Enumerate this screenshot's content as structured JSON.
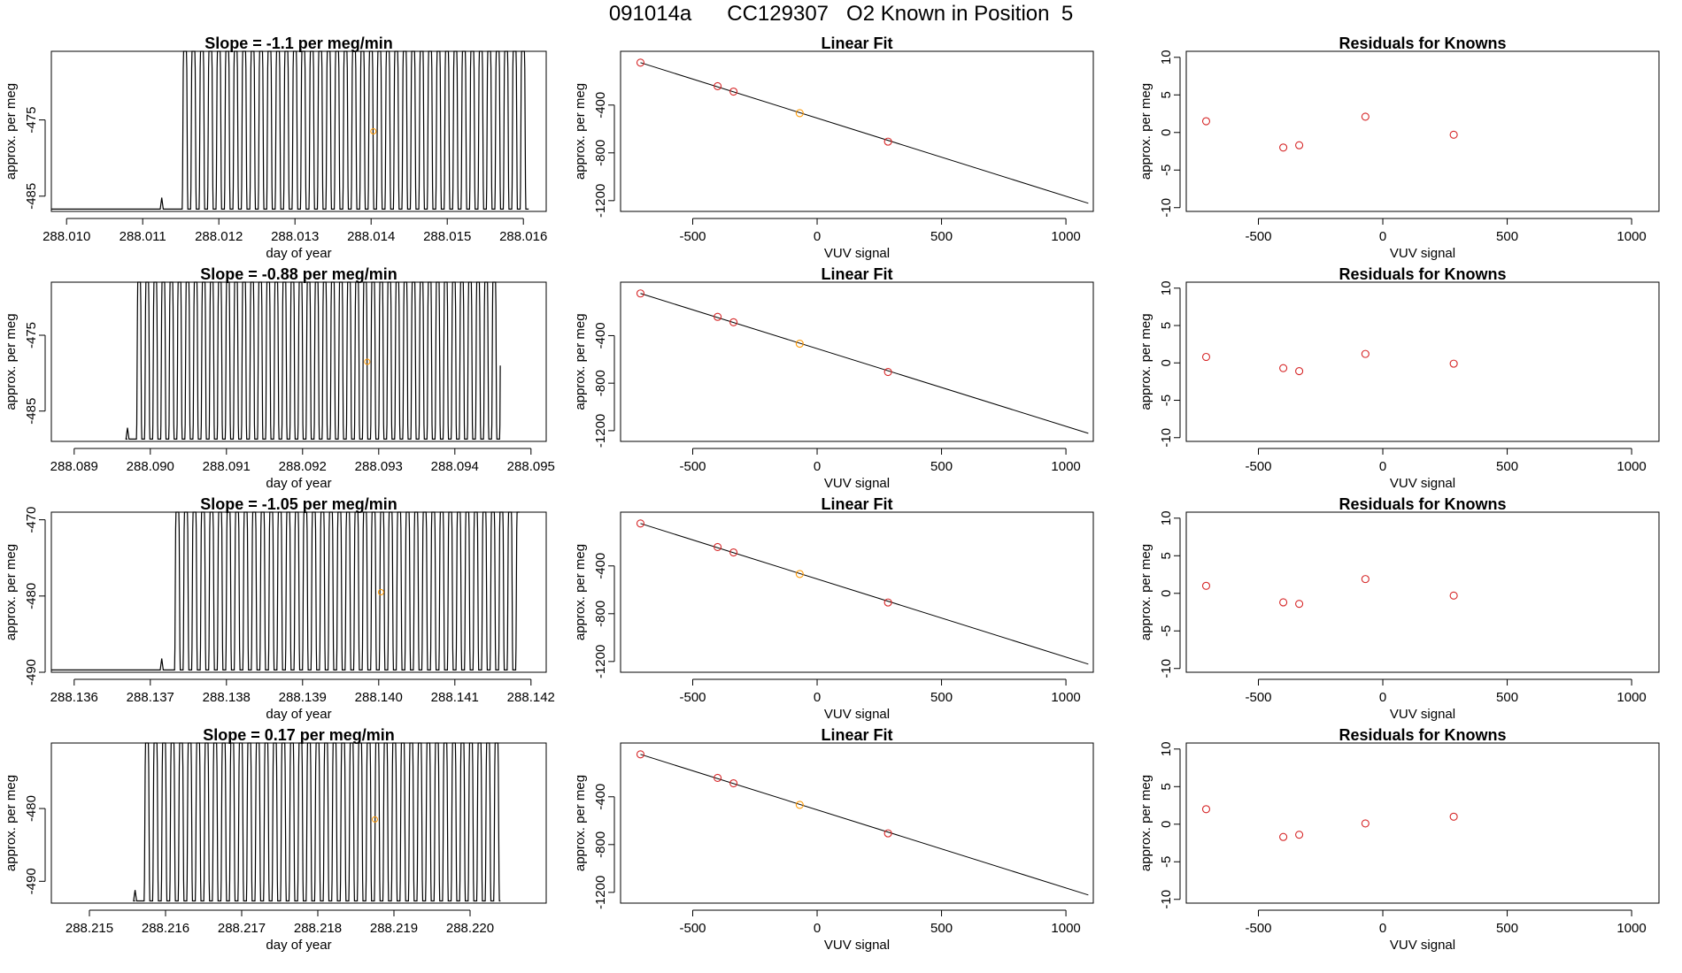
{
  "page_title": "091014a      CC129307   O2 Known in Position  5",
  "colors": {
    "line": "#000000",
    "known": "#d62728",
    "sample": "#ff9900",
    "axis": "#000000"
  },
  "chart_data": [
    {
      "type": "line",
      "title": "Slope =  -1.1  per meg/min",
      "xlabel": "day of year",
      "ylabel": "approx. per meg",
      "xlim": [
        288.0098,
        288.0163
      ],
      "ylim": [
        -487,
        -466
      ],
      "xticks": [
        288.01,
        288.011,
        288.012,
        288.013,
        288.014,
        288.015,
        288.016
      ],
      "xtick_labels": [
        "288.010",
        "288.011",
        "288.012",
        "288.013",
        "288.014",
        "288.015",
        "288.016"
      ],
      "yticks": [
        -475,
        -485
      ],
      "ytick_labels": [
        "-475",
        "-485"
      ],
      "series": [
        {
          "name": "trace",
          "x_start": 288.0098,
          "x_rise": 288.01125,
          "x_osc_start": 288.0115,
          "x_end": 288.01607,
          "period": 0.000111,
          "amplitude": 30,
          "center": -476
        }
      ],
      "marker": {
        "x": 288.01403,
        "y": -476.5
      }
    },
    {
      "type": "scatter",
      "title": "Linear Fit",
      "xlabel": "VUV signal",
      "ylabel": "approx. per meg",
      "xlim": [
        -790,
        1110
      ],
      "ylim": [
        -1290,
        50
      ],
      "xticks": [
        -500,
        0,
        500,
        1000
      ],
      "xtick_labels": [
        "-500",
        "0",
        "500",
        "1000"
      ],
      "yticks": [
        -400,
        -800,
        -1200
      ],
      "ytick_labels": [
        "-400",
        "-800",
        "-1200"
      ],
      "fit_line": {
        "x": [
          -710,
          1090
        ],
        "y": [
          -45,
          -1222
        ]
      },
      "points": [
        {
          "x": -710,
          "y": -45,
          "kind": "known"
        },
        {
          "x": -400,
          "y": -242,
          "kind": "known"
        },
        {
          "x": -336,
          "y": -287,
          "kind": "known"
        },
        {
          "x": -70,
          "y": -468,
          "kind": "sample"
        },
        {
          "x": 285,
          "y": -706,
          "kind": "known"
        }
      ]
    },
    {
      "type": "scatter",
      "title": "Residuals for Knowns",
      "xlabel": "VUV signal",
      "ylabel": "approx. per meg",
      "xlim": [
        -790,
        1110
      ],
      "ylim": [
        -10.5,
        10.8
      ],
      "xticks": [
        -500,
        0,
        500,
        1000
      ],
      "xtick_labels": [
        "-500",
        "0",
        "500",
        "1000"
      ],
      "yticks": [
        10,
        5,
        0,
        -5,
        -10
      ],
      "ytick_labels": [
        "10",
        "5",
        "0",
        "-5",
        "-10"
      ],
      "points": [
        {
          "x": -710,
          "y": 1.5
        },
        {
          "x": -400,
          "y": -2.0
        },
        {
          "x": -336,
          "y": -1.7
        },
        {
          "x": -70,
          "y": 2.1
        },
        {
          "x": 285,
          "y": -0.3
        }
      ]
    },
    {
      "type": "line",
      "title": "Slope =  -0.88  per meg/min",
      "xlabel": "day of year",
      "ylabel": "approx. per meg",
      "xlim": [
        288.0887,
        288.0952
      ],
      "ylim": [
        -489,
        -468
      ],
      "xticks": [
        288.089,
        288.09,
        288.091,
        288.092,
        288.093,
        288.094,
        288.095
      ],
      "xtick_labels": [
        "288.089",
        "288.090",
        "288.091",
        "288.092",
        "288.093",
        "288.094",
        "288.095"
      ],
      "yticks": [
        -475,
        -485
      ],
      "ytick_labels": [
        "-475",
        "-485"
      ],
      "series": [
        {
          "name": "trace",
          "x_start": 288.0897,
          "x_rise": 288.0897,
          "x_osc_start": 288.0898,
          "x_end": 288.0946,
          "period": 0.000106,
          "amplitude": 30,
          "center": -479
        }
      ],
      "marker": {
        "x": 288.09285,
        "y": -478.5
      }
    },
    {
      "type": "scatter",
      "title": "Linear Fit",
      "xlabel": "VUV signal",
      "ylabel": "approx. per meg",
      "xlim": [
        -790,
        1110
      ],
      "ylim": [
        -1290,
        50
      ],
      "xticks": [
        -500,
        0,
        500,
        1000
      ],
      "xtick_labels": [
        "-500",
        "0",
        "500",
        "1000"
      ],
      "yticks": [
        -400,
        -800,
        -1200
      ],
      "ytick_labels": [
        "-400",
        "-800",
        "-1200"
      ],
      "fit_line": {
        "x": [
          -710,
          1090
        ],
        "y": [
          -45,
          -1222
        ]
      },
      "points": [
        {
          "x": -710,
          "y": -45,
          "kind": "known"
        },
        {
          "x": -400,
          "y": -242,
          "kind": "known"
        },
        {
          "x": -336,
          "y": -287,
          "kind": "known"
        },
        {
          "x": -70,
          "y": -468,
          "kind": "sample"
        },
        {
          "x": 285,
          "y": -706,
          "kind": "known"
        }
      ]
    },
    {
      "type": "scatter",
      "title": "Residuals for Knowns",
      "xlabel": "VUV signal",
      "ylabel": "approx. per meg",
      "xlim": [
        -790,
        1110
      ],
      "ylim": [
        -10.5,
        10.8
      ],
      "xticks": [
        -500,
        0,
        500,
        1000
      ],
      "xtick_labels": [
        "-500",
        "0",
        "500",
        "1000"
      ],
      "yticks": [
        10,
        5,
        0,
        -5,
        -10
      ],
      "ytick_labels": [
        "10",
        "5",
        "0",
        "-5",
        "-10"
      ],
      "points": [
        {
          "x": -710,
          "y": 0.8
        },
        {
          "x": -400,
          "y": -0.7
        },
        {
          "x": -336,
          "y": -1.1
        },
        {
          "x": -70,
          "y": 1.2
        },
        {
          "x": 285,
          "y": -0.1
        }
      ]
    },
    {
      "type": "line",
      "title": "Slope =  -1.05  per meg/min",
      "xlabel": "day of year",
      "ylabel": "approx. per meg",
      "xlim": [
        288.1357,
        288.1422
      ],
      "ylim": [
        -490,
        -469
      ],
      "xticks": [
        288.136,
        288.137,
        288.138,
        288.139,
        288.14,
        288.141,
        288.142
      ],
      "xtick_labels": [
        "288.136",
        "288.137",
        "288.138",
        "288.139",
        "288.140",
        "288.141",
        "288.142"
      ],
      "yticks": [
        -470,
        -480,
        -490
      ],
      "ytick_labels": [
        "-470",
        "-480",
        "-490"
      ],
      "series": [
        {
          "name": "trace",
          "x_start": 288.1357,
          "x_rise": 288.13715,
          "x_osc_start": 288.1373,
          "x_end": 288.14185,
          "period": 0.000112,
          "amplitude": 30,
          "center": -479
        }
      ],
      "marker": {
        "x": 288.14003,
        "y": -479.5
      }
    },
    {
      "type": "scatter",
      "title": "Linear Fit",
      "xlabel": "VUV signal",
      "ylabel": "approx. per meg",
      "xlim": [
        -790,
        1110
      ],
      "ylim": [
        -1290,
        50
      ],
      "xticks": [
        -500,
        0,
        500,
        1000
      ],
      "xtick_labels": [
        "-500",
        "0",
        "500",
        "1000"
      ],
      "yticks": [
        -400,
        -800,
        -1200
      ],
      "ytick_labels": [
        "-400",
        "-800",
        "-1200"
      ],
      "fit_line": {
        "x": [
          -710,
          1090
        ],
        "y": [
          -45,
          -1222
        ]
      },
      "points": [
        {
          "x": -710,
          "y": -45,
          "kind": "known"
        },
        {
          "x": -400,
          "y": -242,
          "kind": "known"
        },
        {
          "x": -336,
          "y": -287,
          "kind": "known"
        },
        {
          "x": -70,
          "y": -468,
          "kind": "sample"
        },
        {
          "x": 285,
          "y": -706,
          "kind": "known"
        }
      ]
    },
    {
      "type": "scatter",
      "title": "Residuals for Knowns",
      "xlabel": "VUV signal",
      "ylabel": "approx. per meg",
      "xlim": [
        -790,
        1110
      ],
      "ylim": [
        -10.5,
        10.8
      ],
      "xticks": [
        -500,
        0,
        500,
        1000
      ],
      "xtick_labels": [
        "-500",
        "0",
        "500",
        "1000"
      ],
      "yticks": [
        10,
        5,
        0,
        -5,
        -10
      ],
      "ytick_labels": [
        "10",
        "5",
        "0",
        "-5",
        "-10"
      ],
      "points": [
        {
          "x": -710,
          "y": 1.0
        },
        {
          "x": -400,
          "y": -1.2
        },
        {
          "x": -336,
          "y": -1.4
        },
        {
          "x": -70,
          "y": 1.9
        },
        {
          "x": 285,
          "y": -0.3
        }
      ]
    },
    {
      "type": "line",
      "title": "Slope =  0.17  per meg/min",
      "xlabel": "day of year",
      "ylabel": "approx. per meg",
      "xlim": [
        288.2145,
        288.221
      ],
      "ylim": [
        -493,
        -471
      ],
      "xticks": [
        288.215,
        288.216,
        288.217,
        288.218,
        288.219,
        288.22
      ],
      "xtick_labels": [
        "288.215",
        "288.216",
        "288.217",
        "288.218",
        "288.219",
        "288.220"
      ],
      "yticks": [
        -480,
        -490
      ],
      "ytick_labels": [
        "-480",
        "-490"
      ],
      "series": [
        {
          "name": "trace",
          "x_start": 288.2156,
          "x_rise": 288.2156,
          "x_osc_start": 288.2157,
          "x_end": 288.2204,
          "period": 0.000112,
          "amplitude": 30,
          "center": -482
        }
      ],
      "marker": {
        "x": 288.21875,
        "y": -481.5
      }
    },
    {
      "type": "scatter",
      "title": "Linear Fit",
      "xlabel": "VUV signal",
      "ylabel": "approx. per meg",
      "xlim": [
        -790,
        1110
      ],
      "ylim": [
        -1290,
        50
      ],
      "xticks": [
        -500,
        0,
        500,
        1000
      ],
      "xtick_labels": [
        "-500",
        "0",
        "500",
        "1000"
      ],
      "yticks": [
        -400,
        -800,
        -1200
      ],
      "ytick_labels": [
        "-400",
        "-800",
        "-1200"
      ],
      "fit_line": {
        "x": [
          -710,
          1090
        ],
        "y": [
          -45,
          -1222
        ]
      },
      "points": [
        {
          "x": -710,
          "y": -45,
          "kind": "known"
        },
        {
          "x": -400,
          "y": -242,
          "kind": "known"
        },
        {
          "x": -336,
          "y": -287,
          "kind": "known"
        },
        {
          "x": -70,
          "y": -468,
          "kind": "sample"
        },
        {
          "x": 285,
          "y": -706,
          "kind": "known"
        }
      ]
    },
    {
      "type": "scatter",
      "title": "Residuals for Knowns",
      "xlabel": "VUV signal",
      "ylabel": "approx. per meg",
      "xlim": [
        -790,
        1110
      ],
      "ylim": [
        -10.5,
        10.8
      ],
      "xticks": [
        -500,
        0,
        500,
        1000
      ],
      "xtick_labels": [
        "-500",
        "0",
        "500",
        "1000"
      ],
      "yticks": [
        10,
        5,
        0,
        -5,
        -10
      ],
      "ytick_labels": [
        "10",
        "5",
        "0",
        "-5",
        "-10"
      ],
      "points": [
        {
          "x": -710,
          "y": 2.0
        },
        {
          "x": -400,
          "y": -1.7
        },
        {
          "x": -336,
          "y": -1.4
        },
        {
          "x": -70,
          "y": 0.1
        },
        {
          "x": 285,
          "y": 1.0
        }
      ]
    }
  ]
}
